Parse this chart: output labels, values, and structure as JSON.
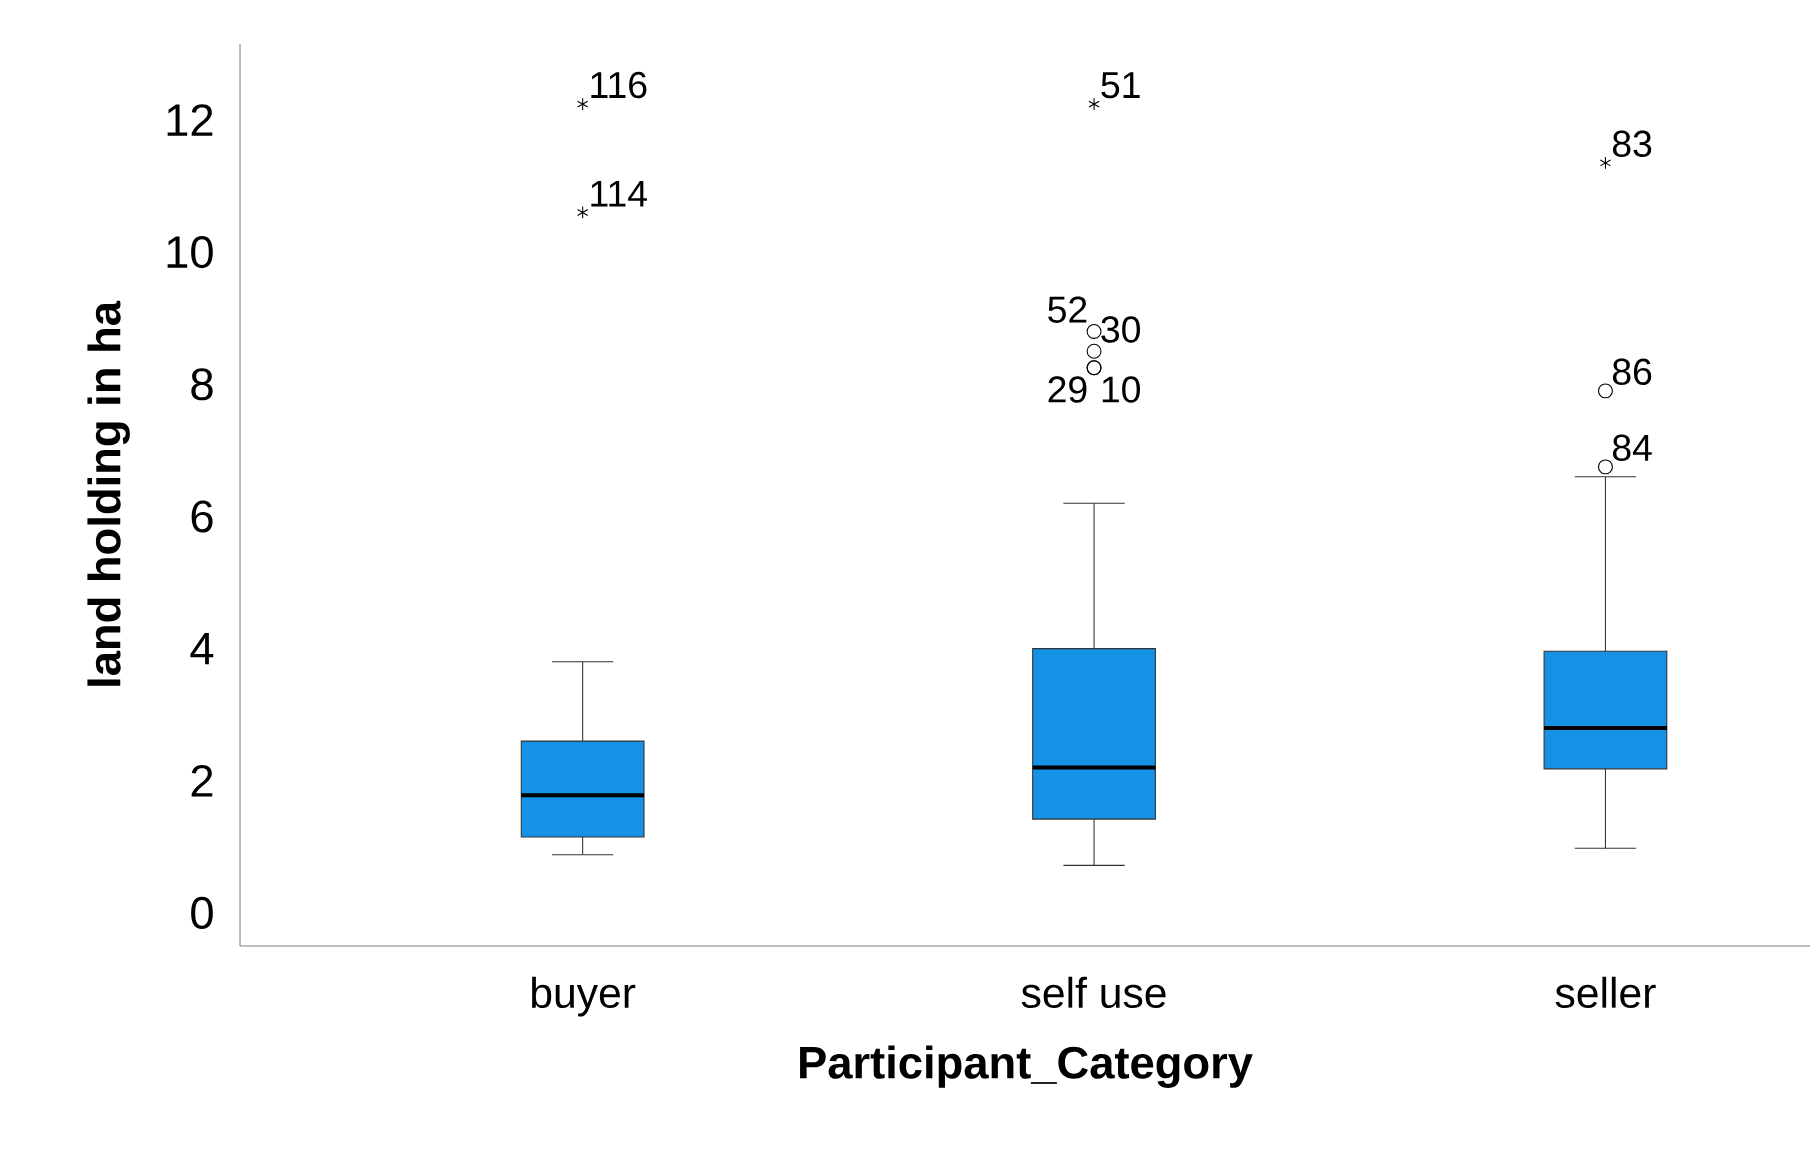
{
  "chart_data": {
    "type": "box",
    "xlabel": "Participant_Category",
    "ylabel": "land holding in ha",
    "categories": [
      "buyer",
      "self use",
      "seller"
    ],
    "series": [
      {
        "color": "#1591e6",
        "boxes": [
          {
            "low": 0.88,
            "q1": 1.15,
            "median": 1.78,
            "q3": 2.6,
            "high": 3.8,
            "outliers": [
              10.6,
              12.24
            ]
          },
          {
            "low": 0.72,
            "q1": 1.42,
            "median": 2.2,
            "q3": 4.0,
            "high": 6.2,
            "outliers": [
              8.25,
              8.25,
              8.5,
              8.8,
              12.24
            ]
          },
          {
            "low": 0.98,
            "q1": 2.18,
            "median": 2.8,
            "q3": 3.96,
            "high": 6.6,
            "outliers": [
              6.75,
              7.9,
              11.35
            ]
          }
        ]
      }
    ],
    "ylim": [
      -0.5,
      13.15
    ],
    "yticks": [
      0,
      2,
      4,
      6,
      8,
      10,
      12
    ],
    "annotations": [
      "116",
      "114",
      "51",
      "52",
      "30",
      "29",
      "10",
      "83",
      "86",
      "84"
    ]
  }
}
